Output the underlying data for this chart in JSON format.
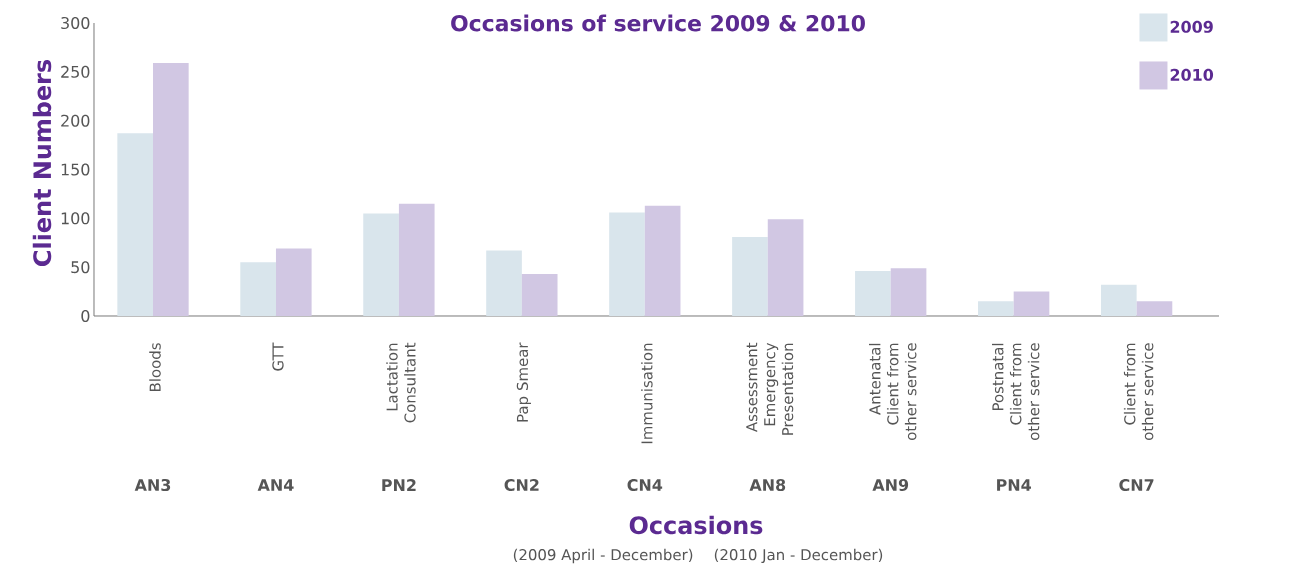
{
  "chart_data": {
    "type": "bar",
    "title": "Occasions of service 2009 & 2010",
    "xlabel": "Occasions",
    "ylabel": "Client Numbers",
    "categories": [
      "Bloods",
      "GTT",
      "Lactation Consultant",
      "Pap Smear",
      "Immunisation",
      "Assessment Emergency Presentation",
      "Antenatal Client from other service",
      "Postnatal Client from other service",
      "Client from other service"
    ],
    "series": [
      {
        "name": "2009",
        "color": "#d9e5ec",
        "values": [
          187,
          55,
          105,
          67,
          106,
          81,
          46,
          15,
          32
        ]
      },
      {
        "name": "2010",
        "color": "#d1c7e3",
        "values": [
          259,
          69,
          115,
          43,
          113,
          99,
          49,
          25,
          15
        ]
      }
    ],
    "ylim": [
      0,
      300
    ],
    "yticks": [
      0,
      50,
      100,
      150,
      200,
      250,
      300
    ],
    "grid": false,
    "legend": "top right",
    "annotations": [
      "AN3",
      "AN4",
      "PN2",
      "CN2",
      "CN4",
      "AN8",
      "AN9",
      "PN4",
      "CN7",
      "(2009 April - December)",
      "(2010 Jan - December)"
    ]
  }
}
